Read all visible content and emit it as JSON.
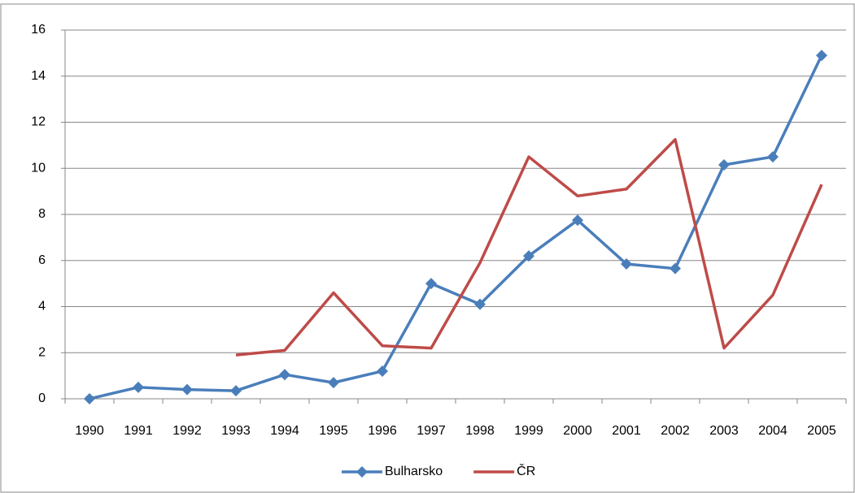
{
  "chart_data": {
    "type": "line",
    "categories": [
      "1990",
      "1991",
      "1992",
      "1993",
      "1994",
      "1995",
      "1996",
      "1997",
      "1998",
      "1999",
      "2000",
      "2001",
      "2002",
      "2003",
      "2004",
      "2005"
    ],
    "series": [
      {
        "name": "Bulharsko",
        "color": "#4a7ebb",
        "marker": "diamond",
        "values": [
          0,
          0.5,
          0.4,
          0.35,
          1.05,
          0.7,
          1.2,
          5.0,
          4.1,
          6.2,
          7.75,
          5.85,
          5.65,
          10.15,
          10.5,
          14.9
        ]
      },
      {
        "name": "ČR",
        "color": "#be4b48",
        "values": [
          null,
          null,
          null,
          1.9,
          2.1,
          4.6,
          2.3,
          2.2,
          5.9,
          10.5,
          8.8,
          9.1,
          11.25,
          2.2,
          4.5,
          9.3
        ]
      }
    ],
    "ylim": [
      0,
      16
    ],
    "yticks": [
      0,
      2,
      4,
      6,
      8,
      10,
      12,
      14,
      16
    ],
    "grid": true,
    "legend": "bottom"
  }
}
